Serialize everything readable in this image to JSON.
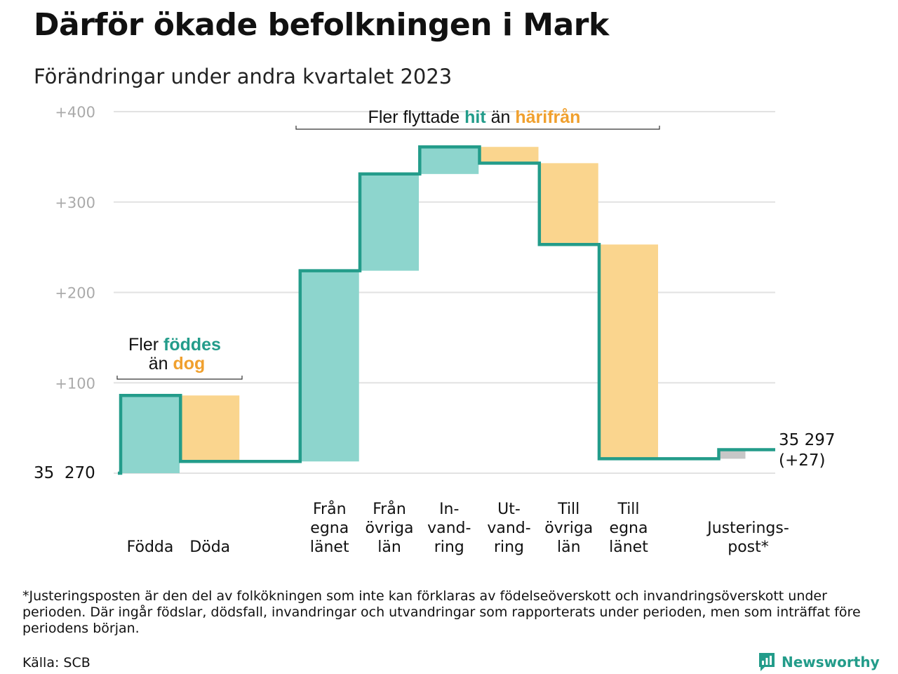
{
  "title": "Därför ökade befolkningen i Mark",
  "subtitle": "Förändringar under andra kvartalet 2023",
  "footnote": "*Justeringsposten är den del av folkökningen som inte kan förklaras av födelseöverskott och invandringsöverskott under perioden. Där ingår födslar, dödsfall, invandringar och utvandringar som rapporterats under perioden, men som inträffat före periodens början.",
  "source": "Källa: SCB",
  "brand": "Newsworthy",
  "colors": {
    "increase": "#8dd5cd",
    "decrease": "#fad58e",
    "adjustment": "#c7c7c7",
    "line": "#239c8a",
    "accent_teal": "#239c8a",
    "accent_orange": "#f0a02e",
    "grid": "#e2e2e2",
    "tick": "#aaaaaa"
  },
  "annotations": {
    "births": {
      "line1_pre": "Fler ",
      "line1_hl": "föddes",
      "line2_pre": "än ",
      "line2_hl": "dog"
    },
    "migration": {
      "pre": "Fler flyttade ",
      "hl1": "hit",
      "mid": " än ",
      "hl2": "härifrån"
    }
  },
  "chart_data": {
    "type": "waterfall",
    "title": "Därför ökade befolkningen i Mark",
    "subtitle": "Förändringar under andra kvartalet 2023",
    "start_label": "35  270",
    "start_value": 35270,
    "end_label_value": "35 297",
    "end_label_change": "(+27)",
    "end_value": 35297,
    "ylim": [
      0,
      400
    ],
    "yticks": [
      100,
      200,
      300,
      400
    ],
    "ytick_labels": [
      "+100",
      "+200",
      "+300",
      "+400"
    ],
    "grid": true,
    "categories": [
      {
        "label": [
          "Födda"
        ],
        "value": 86
      },
      {
        "label": [
          "Döda"
        ],
        "value": -73
      },
      {
        "label": [
          ""
        ],
        "value": 0
      },
      {
        "label": [
          "Från",
          "egna",
          "länet"
        ],
        "value": 211
      },
      {
        "label": [
          "Från",
          "övriga",
          "län"
        ],
        "value": 107
      },
      {
        "label": [
          "In-",
          "vand-",
          "ring"
        ],
        "value": 30
      },
      {
        "label": [
          "Ut-",
          "vand-",
          "ring"
        ],
        "value": -18
      },
      {
        "label": [
          "Till",
          "övriga",
          "län"
        ],
        "value": -90
      },
      {
        "label": [
          "Till",
          "egna",
          "länet"
        ],
        "value": -237
      },
      {
        "label": [
          ""
        ],
        "value": 0
      },
      {
        "label": [
          "Justerings-",
          "post*"
        ],
        "value": 10
      }
    ]
  }
}
